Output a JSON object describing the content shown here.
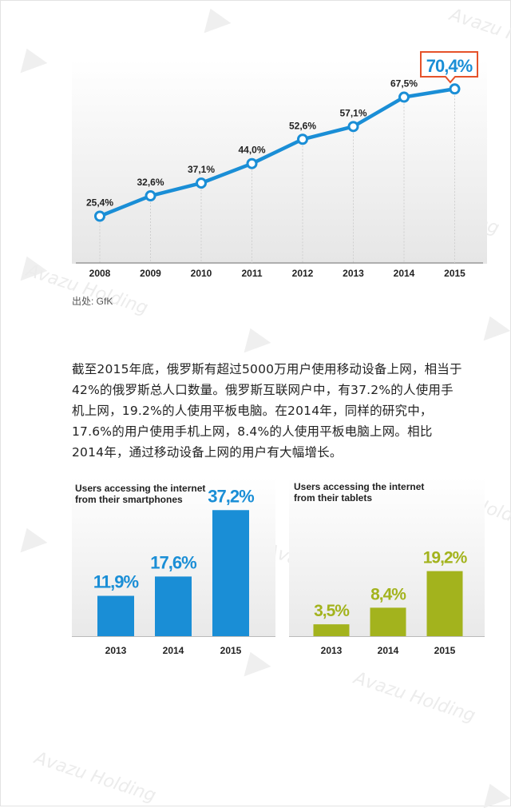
{
  "chart_data": [
    {
      "type": "line",
      "title": "",
      "categories": [
        "2008",
        "2009",
        "2010",
        "2011",
        "2012",
        "2013",
        "2014",
        "2015"
      ],
      "values": [
        25.4,
        32.6,
        37.1,
        44.0,
        52.6,
        57.1,
        67.5,
        70.4
      ],
      "value_labels": [
        "25,4%",
        "32,6%",
        "37,1%",
        "44,0%",
        "52,6%",
        "57,1%",
        "67,5%",
        "70,4%"
      ],
      "highlight_label": "70,4%",
      "ylim": [
        10,
        75
      ],
      "color": "#1a8ed6"
    },
    {
      "type": "bar",
      "title": "Users accessing the internet from their smartphones",
      "title_lines": [
        "Users accessing the internet",
        "from their smartphones"
      ],
      "categories": [
        "2013",
        "2014",
        "2015"
      ],
      "values": [
        11.9,
        17.6,
        37.2
      ],
      "value_labels": [
        "11,9%",
        "17,6%",
        "37,2%"
      ],
      "ylim": [
        0,
        50
      ],
      "color": "#1a8ed6"
    },
    {
      "type": "bar",
      "title": "Users accessing the internet from their tablets",
      "title_lines": [
        "Users accessing the internet",
        "from their tablets"
      ],
      "categories": [
        "2013",
        "2014",
        "2015"
      ],
      "values": [
        3.5,
        8.4,
        19.2
      ],
      "value_labels": [
        "3,5%",
        "8,4%",
        "19,2%"
      ],
      "ylim": [
        0,
        25
      ],
      "color": "#a3b31d"
    }
  ],
  "source": "出处: GfK",
  "paragraph": [
    "截至2015年底，俄罗斯有超过5000万用户使用移动设备上网，相当于",
    "42%的俄罗斯总人口数量。俄罗斯互联网户中，有37.2%的人使用手",
    "机上网，19.2%的人使用平板电脑。在2014年，同样的研究中，",
    "17.6%的用户使用手机上网，8.4%的人使用平板电脑上网。相比",
    "2014年，通过移动设备上网的用户有大幅增长。"
  ],
  "watermark": "Avazu Holding"
}
